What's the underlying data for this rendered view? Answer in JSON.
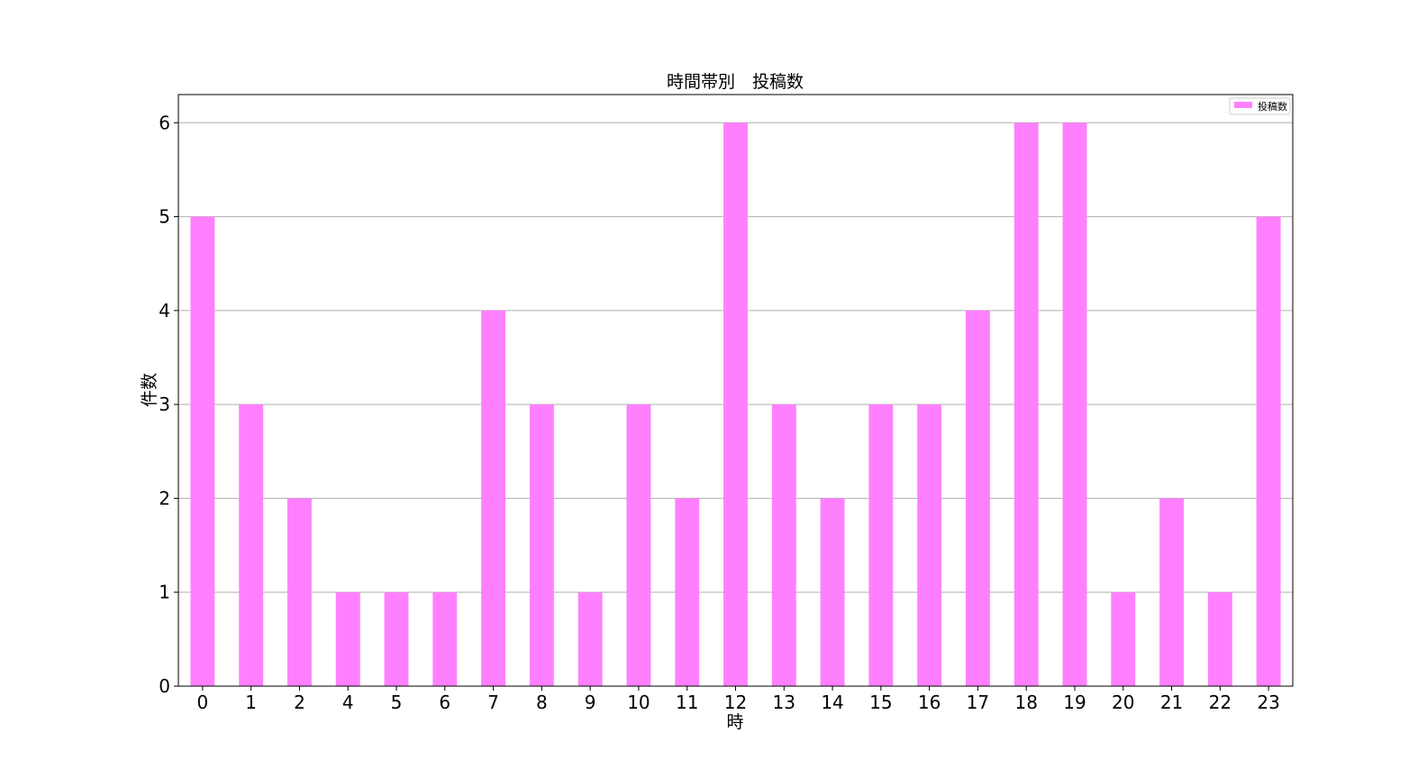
{
  "chart_data": {
    "type": "bar",
    "title": "時間帯別　投稿数",
    "xlabel": "時",
    "ylabel": "件数",
    "categories": [
      "0",
      "1",
      "2",
      "4",
      "5",
      "6",
      "7",
      "8",
      "9",
      "10",
      "11",
      "12",
      "13",
      "14",
      "15",
      "16",
      "17",
      "18",
      "19",
      "20",
      "21",
      "22",
      "23"
    ],
    "series": [
      {
        "name": "投稿数",
        "color": "#ff80ff",
        "values": [
          5,
          3,
          2,
          1,
          1,
          1,
          4,
          3,
          1,
          3,
          2,
          6,
          3,
          2,
          3,
          3,
          4,
          6,
          6,
          1,
          2,
          1,
          5
        ]
      }
    ],
    "ylim": [
      0,
      6.3
    ],
    "yticks": [
      0,
      1,
      2,
      3,
      4,
      5,
      6
    ],
    "grid": "y",
    "legend": "top-right"
  }
}
